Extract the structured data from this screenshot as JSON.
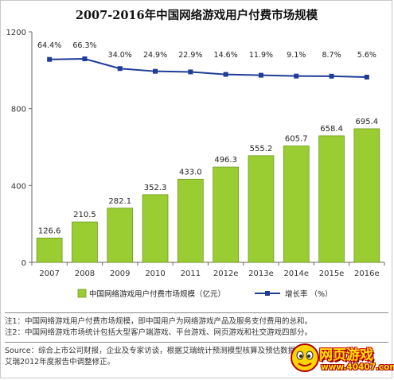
{
  "chart_data": {
    "type": "bar+line",
    "title": "2007-2016年中国网络游戏用户付费市场规模",
    "categories": [
      "2007",
      "2008",
      "2009",
      "2010",
      "2011",
      "2012e",
      "2013e",
      "2014e",
      "2015e",
      "2016e"
    ],
    "series": [
      {
        "name": "中国网络游戏用户付费市场规模（亿元）",
        "type": "bar",
        "values": [
          126.6,
          210.5,
          282.1,
          352.3,
          433.0,
          496.3,
          555.2,
          605.7,
          658.4,
          695.4
        ],
        "labels": [
          "126.6",
          "210.5",
          "282.1",
          "352.3",
          "433.0",
          "496.3",
          "555.2",
          "605.7",
          "658.4",
          "695.4"
        ]
      },
      {
        "name": "增长率 （%）",
        "type": "line",
        "values": [
          64.4,
          66.3,
          34.0,
          24.9,
          22.9,
          14.6,
          11.9,
          9.1,
          8.7,
          5.6
        ],
        "labels": [
          "64.4%",
          "66.3%",
          "34.0%",
          "24.9%",
          "22.9%",
          "14.6%",
          "11.9%",
          "9.1%",
          "8.7%",
          "5.6%"
        ]
      }
    ],
    "ylim": [
      0,
      1200
    ],
    "yticks": [
      "0",
      "400",
      "800",
      "1200"
    ],
    "grid": false,
    "legend_position": "bottom",
    "colors": {
      "bar_fill": "#9acd32",
      "bar_stroke": "#6e9a1e",
      "line": "#1f3c99"
    }
  },
  "notes": [
    "注1：中国网络游戏用户付费市场规模，即中国用户为网络游戏产品及服务支付费用的总和。",
    "注2：中国网络游戏市场统计包括大型客户端游戏、平台游戏、网页游戏和社交游戏四部分。"
  ],
  "source": "Source：综合上市公司财报，企业及专家访谈，根据艾瑞统计预测模型核算及预估数据。",
  "source_line2": "艾瑞2012年度报告中调整修正。",
  "watermark": {
    "name": "网页游戏",
    "url": "www.40407.com"
  }
}
